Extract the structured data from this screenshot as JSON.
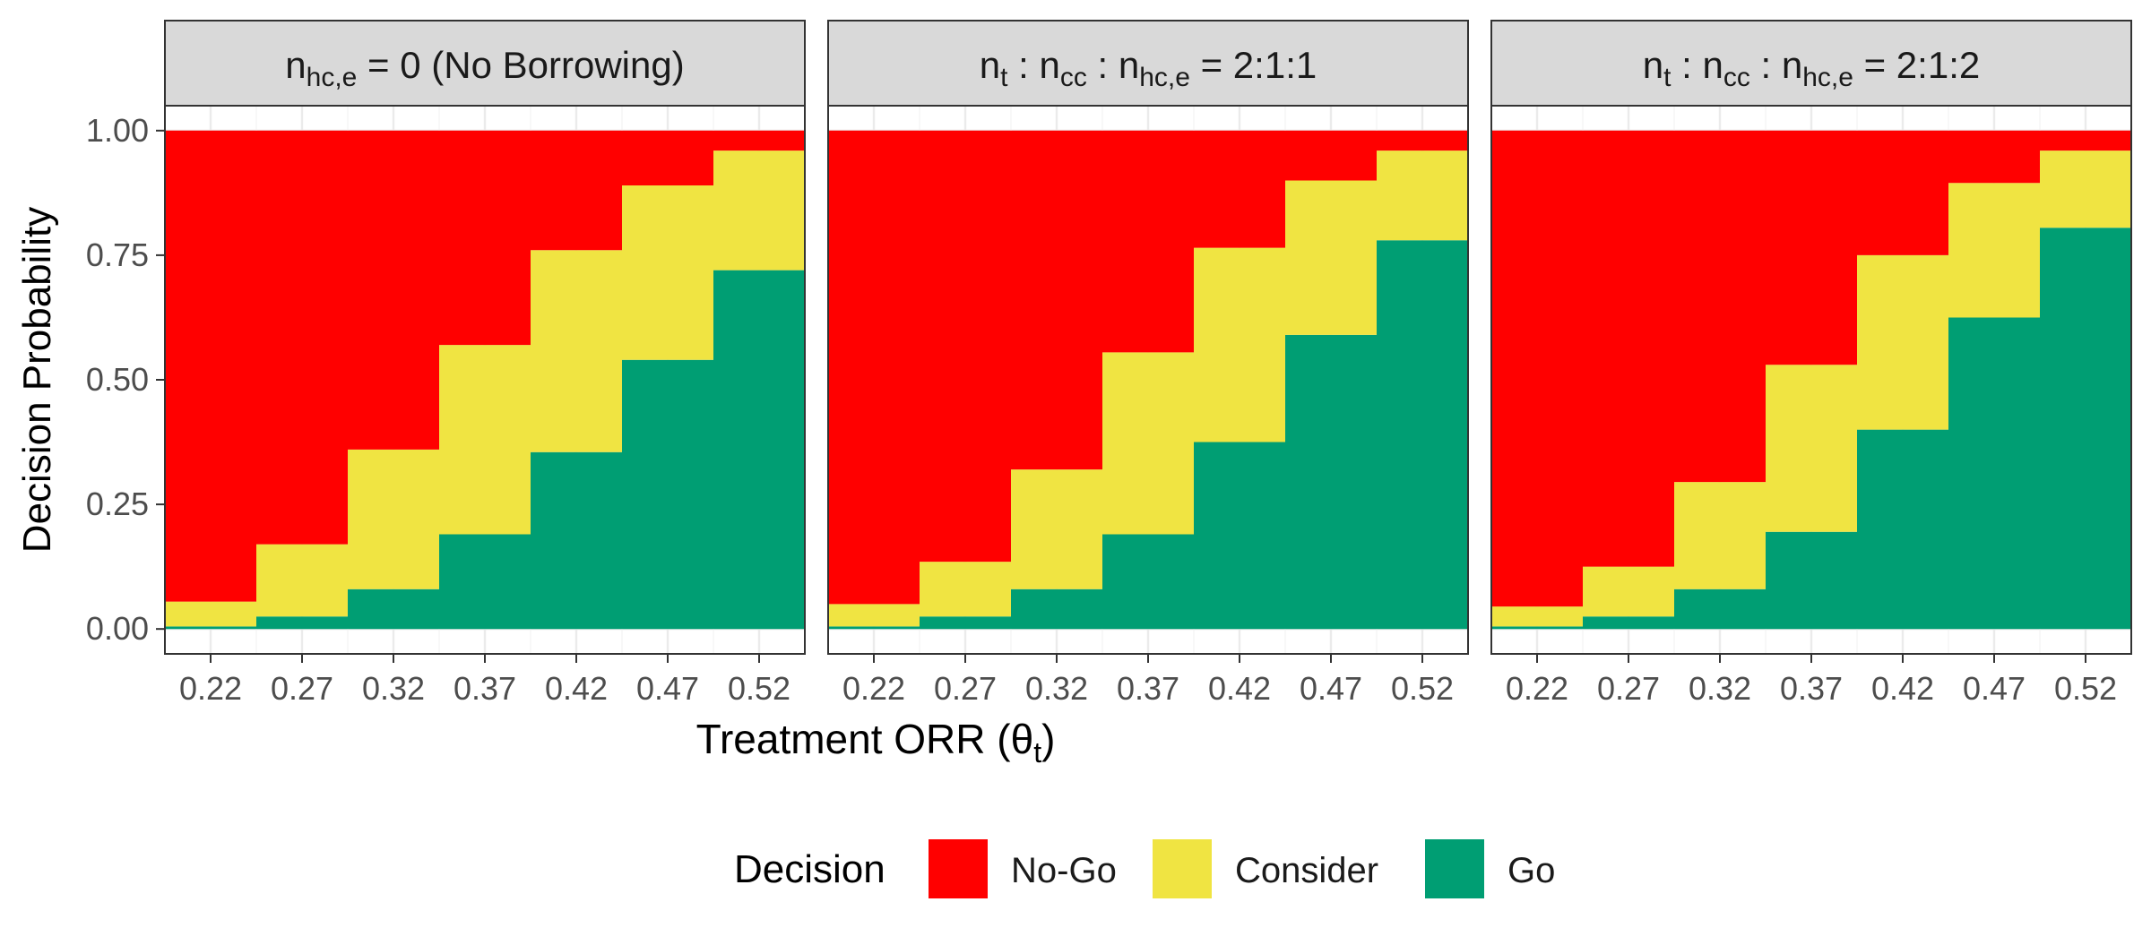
{
  "chart_data": {
    "type": "area",
    "ylabel": "Decision Probability",
    "xlabel": {
      "main": "Treatment ORR (",
      "symbol": "θ",
      "sub": "t",
      "tail": ")"
    },
    "x": [
      0.22,
      0.27,
      0.32,
      0.37,
      0.42,
      0.47,
      0.52
    ],
    "x_tick_labels": [
      "0.22",
      "0.27",
      "0.32",
      "0.37",
      "0.42",
      "0.47",
      "0.52"
    ],
    "y_tick_labels": [
      "0.00",
      "0.25",
      "0.50",
      "0.75",
      "1.00"
    ],
    "y_ticks": [
      0,
      0.25,
      0.5,
      0.75,
      1.0
    ],
    "ylim": [
      -0.05,
      1.05
    ],
    "xlim": [
      0.195,
      0.545
    ],
    "grid": true,
    "step": "centered",
    "legend": {
      "title": "Decision",
      "position": "bottom",
      "entries": [
        "No-Go",
        "Consider",
        "Go"
      ]
    },
    "colors": {
      "No-Go": "#FF0000",
      "Consider": "#F0E442",
      "Go": "#009E73"
    },
    "panels": [
      {
        "strip_parts": [
          {
            "t": "n"
          },
          {
            "t": "hc,e",
            "sub": true
          },
          {
            "t": " = 0 (No Borrowing)"
          }
        ],
        "series": [
          {
            "name": "Go",
            "values": [
              0.005,
              0.025,
              0.08,
              0.19,
              0.355,
              0.54,
              0.72
            ]
          },
          {
            "name": "Consider",
            "values": [
              0.05,
              0.145,
              0.28,
              0.38,
              0.405,
              0.35,
              0.24
            ]
          },
          {
            "name": "No-Go",
            "values": [
              0.945,
              0.83,
              0.64,
              0.43,
              0.24,
              0.11,
              0.04
            ]
          }
        ]
      },
      {
        "strip_parts": [
          {
            "t": "n"
          },
          {
            "t": "t",
            "sub": true
          },
          {
            "t": " : n"
          },
          {
            "t": "cc",
            "sub": true
          },
          {
            "t": " : n"
          },
          {
            "t": "hc,e",
            "sub": true
          },
          {
            "t": " = 2:1:1"
          }
        ],
        "series": [
          {
            "name": "Go",
            "values": [
              0.005,
              0.025,
              0.08,
              0.19,
              0.375,
              0.59,
              0.78
            ]
          },
          {
            "name": "Consider",
            "values": [
              0.045,
              0.11,
              0.24,
              0.365,
              0.39,
              0.31,
              0.18
            ]
          },
          {
            "name": "No-Go",
            "values": [
              0.95,
              0.865,
              0.68,
              0.445,
              0.235,
              0.1,
              0.04
            ]
          }
        ]
      },
      {
        "strip_parts": [
          {
            "t": "n"
          },
          {
            "t": "t",
            "sub": true
          },
          {
            "t": " : n"
          },
          {
            "t": "cc",
            "sub": true
          },
          {
            "t": " : n"
          },
          {
            "t": "hc,e",
            "sub": true
          },
          {
            "t": " = 2:1:2"
          }
        ],
        "series": [
          {
            "name": "Go",
            "values": [
              0.005,
              0.025,
              0.08,
              0.195,
              0.4,
              0.625,
              0.805
            ]
          },
          {
            "name": "Consider",
            "values": [
              0.04,
              0.1,
              0.215,
              0.335,
              0.35,
              0.27,
              0.155
            ]
          },
          {
            "name": "No-Go",
            "values": [
              0.955,
              0.875,
              0.705,
              0.47,
              0.25,
              0.105,
              0.04
            ]
          }
        ]
      }
    ]
  }
}
